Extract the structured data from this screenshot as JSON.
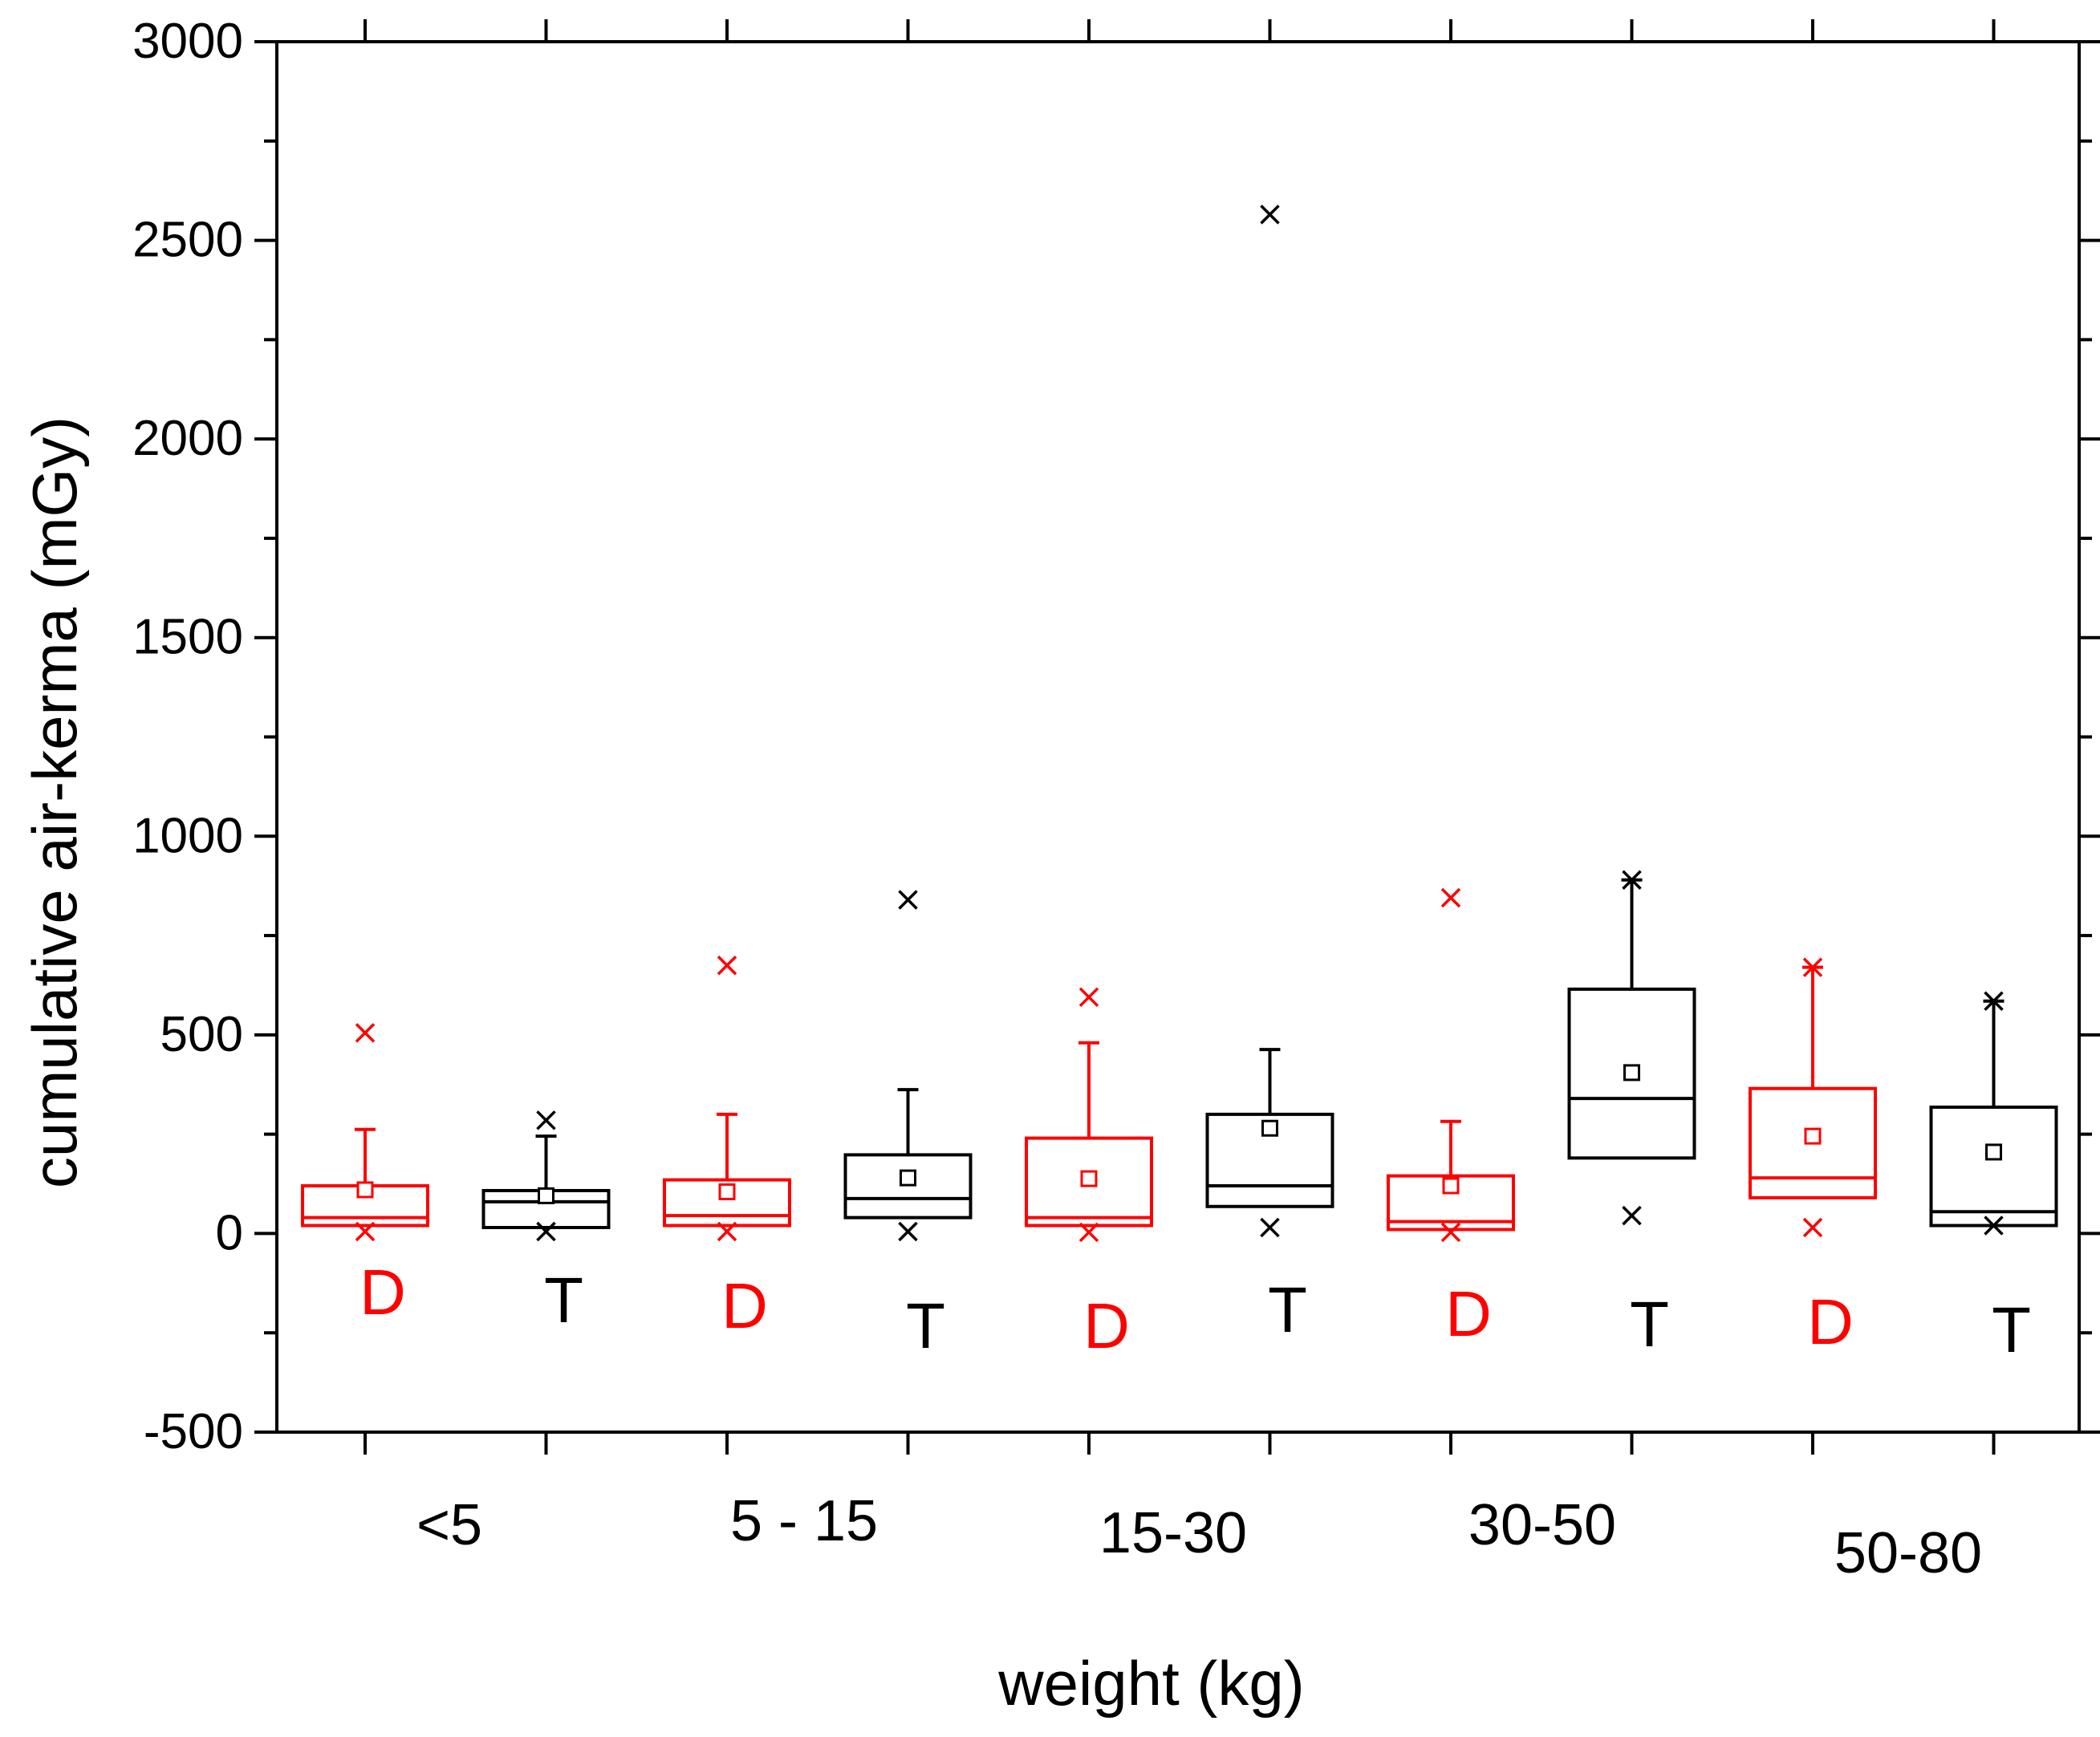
{
  "chart_data": {
    "type": "box",
    "title": "",
    "xlabel": "weight (kg)",
    "ylabel": "cumulative air-kerma (mGy)",
    "ylim": [
      -500,
      3000
    ],
    "yticks": [
      -500,
      0,
      500,
      1000,
      1500,
      2000,
      2500,
      3000
    ],
    "ytick_labels": [
      "-500",
      "0",
      "500",
      "1000",
      "1500",
      "2000",
      "2500",
      "3000"
    ],
    "groups": [
      "<5",
      "5 - 15",
      "15-30",
      "30-50",
      "50-80"
    ],
    "series": [
      {
        "name": "D",
        "color": "#ff0000"
      },
      {
        "name": "T",
        "color": "#000000"
      }
    ],
    "boxes": [
      {
        "group": "<5",
        "series": "D",
        "min": 5,
        "whisker_low": 20,
        "q1": 20,
        "median": 40,
        "q3": 120,
        "whisker_high": 262,
        "mean": 110,
        "max": 505
      },
      {
        "group": "<5",
        "series": "T",
        "min": 5,
        "whisker_low": 15,
        "q1": 15,
        "median": 80,
        "q3": 108,
        "whisker_high": 245,
        "mean": 95,
        "max": 285
      },
      {
        "group": "5 - 15",
        "series": "D",
        "min": 5,
        "whisker_low": 20,
        "q1": 20,
        "median": 45,
        "q3": 135,
        "whisker_high": 300,
        "mean": 105,
        "max": 675
      },
      {
        "group": "5 - 15",
        "series": "T",
        "min": 5,
        "whisker_low": 40,
        "q1": 40,
        "median": 88,
        "q3": 198,
        "whisker_high": 362,
        "mean": 140,
        "max": 840
      },
      {
        "group": "15-30",
        "series": "D",
        "min": 3,
        "whisker_low": 20,
        "q1": 20,
        "median": 40,
        "q3": 240,
        "whisker_high": 480,
        "mean": 138,
        "max": 595
      },
      {
        "group": "15-30",
        "series": "T",
        "min": 15,
        "whisker_low": 68,
        "q1": 68,
        "median": 120,
        "q3": 300,
        "whisker_high": 463,
        "mean": 265,
        "max": 2565
      },
      {
        "group": "30-50",
        "series": "D",
        "min": 3,
        "whisker_low": 10,
        "q1": 10,
        "median": 30,
        "q3": 145,
        "whisker_high": 282,
        "mean": 120,
        "max": 845
      },
      {
        "group": "30-50",
        "series": "T",
        "min": 45,
        "whisker_low": 190,
        "q1": 190,
        "median": 340,
        "q3": 615,
        "whisker_high": 890,
        "mean": 405,
        "max": 890
      },
      {
        "group": "50-80",
        "series": "D",
        "min": 15,
        "whisker_low": 90,
        "q1": 90,
        "median": 140,
        "q3": 365,
        "whisker_high": 670,
        "mean": 245,
        "max": 670
      },
      {
        "group": "50-80",
        "series": "T",
        "min": 20,
        "whisker_low": 20,
        "q1": 20,
        "median": 55,
        "q3": 318,
        "whisker_high": 585,
        "mean": 205,
        "max": 585
      }
    ]
  }
}
